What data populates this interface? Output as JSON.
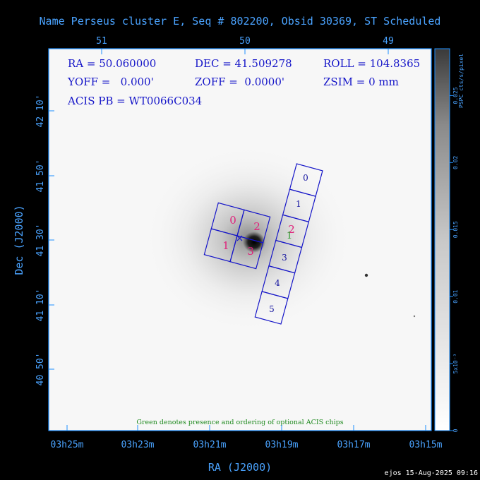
{
  "title": "Name Perseus cluster E, Seq # 802200, Obsid 30369, ST Scheduled",
  "header_values": {
    "ra": "RA = 50.060000",
    "dec": "DEC = 41.509278",
    "roll": "ROLL = 104.8365",
    "yoff": "YOFF =   0.000'",
    "zoff": "ZOFF =  0.0000'",
    "zsim": "ZSIM = 0 mm",
    "acis_pb": "ACIS PB = WT0066C034"
  },
  "footnote": "Green denotes presence and ordering of optional ACIS chips",
  "credit": "ejos 15-Aug-2025 09:16",
  "colors": {
    "background": "#000000",
    "axis_text": "#4aa3ff",
    "frame": "#1e8fff",
    "overlay": "#1515c8",
    "chip_label": "#1515a0",
    "aimpoint_label": "#e0207a",
    "optional_label": "#2b9a2b",
    "footnote": "#1f8a1f"
  },
  "chart_data": {
    "type": "sky-image",
    "xlabel": "RA (J2000)",
    "ylabel": "Dec (J2000)",
    "x_bottom_ticks": [
      "03h25m",
      "03h23m",
      "03h21m",
      "03h19m",
      "03h17m",
      "03h15m"
    ],
    "x_top_ticks": [
      "51",
      "50",
      "49"
    ],
    "y_ticks": [
      "42 10'",
      "41 50'",
      "41 30'",
      "41 10'",
      "40 50'"
    ],
    "colorbar": {
      "label": "PSPC cts/s/pixel",
      "ticks": [
        "0",
        "5x10⁻³",
        "0.01",
        "0.015",
        "0.02",
        "0.025"
      ],
      "values": [
        0,
        0.005,
        0.01,
        0.015,
        0.02,
        0.025
      ]
    },
    "acis_i_chips": [
      "0",
      "1",
      "2",
      "3"
    ],
    "acis_s_chips": [
      "0",
      "1",
      "2",
      "3",
      "4",
      "5"
    ],
    "acis_s_optional_marker": "1"
  }
}
